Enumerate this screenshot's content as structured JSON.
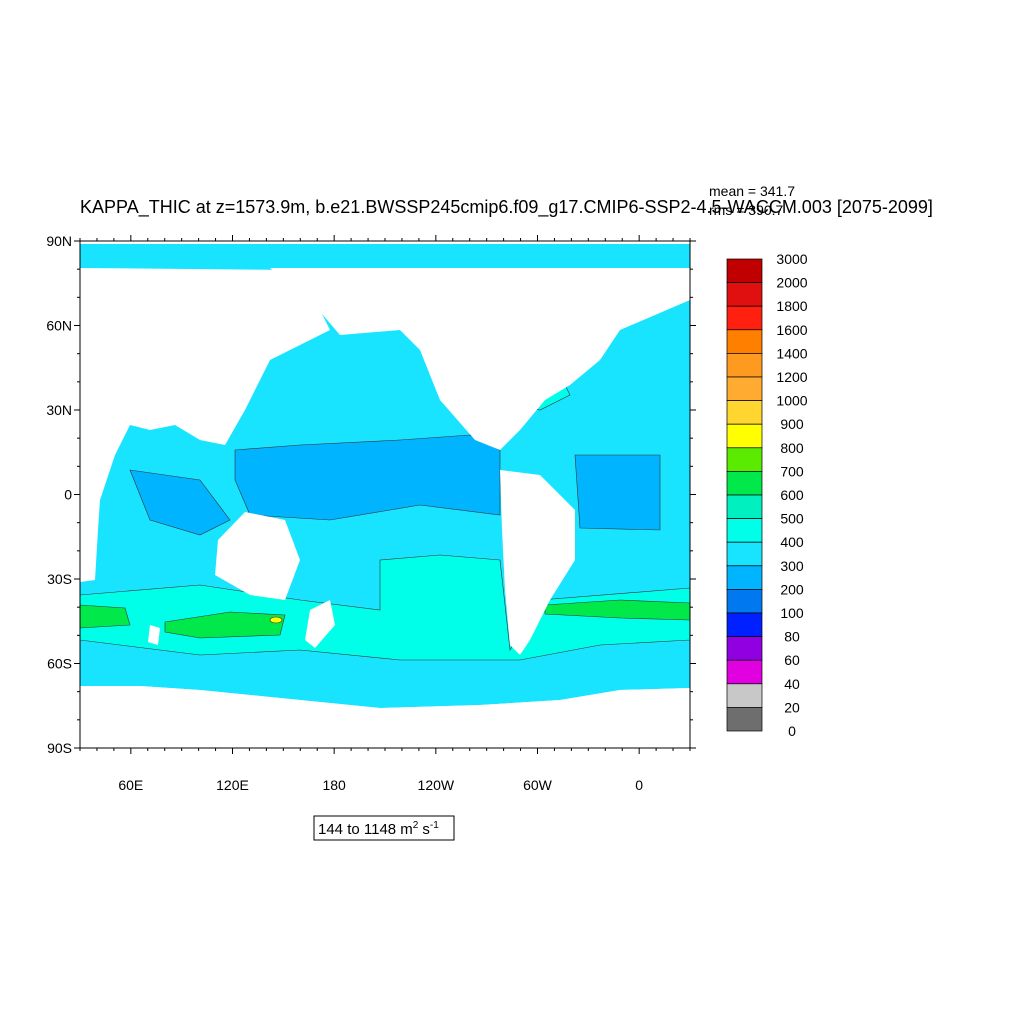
{
  "title": "KAPPA_THIC at z=1573.9m, b.e21.BWSSP245cmip6.f09_g17.CMIP6-SSP2-4.5-WACCM.003 [2075-2099]",
  "stats": {
    "mean": "mean = 341.7",
    "rms": "rms = 390.7"
  },
  "lat_labels": [
    "90N",
    "60N",
    "30N",
    "0",
    "30S",
    "60S",
    "90S"
  ],
  "lon_labels": [
    "60E",
    "120E",
    "180",
    "120W",
    "60W",
    "0"
  ],
  "colorbar": {
    "levels": [
      3000,
      2000,
      1800,
      1600,
      1400,
      1200,
      1000,
      900,
      800,
      700,
      600,
      500,
      400,
      300,
      200,
      100,
      80,
      60,
      40,
      20,
      0
    ],
    "colors": [
      "#c00000",
      "#e01010",
      "#ff2010",
      "#ff8000",
      "#ff9a20",
      "#ffaa30",
      "#ffd530",
      "#ffff00",
      "#5aeb00",
      "#00e84a",
      "#00f0c0",
      "#00ffe8",
      "#18e4ff",
      "#00b4ff",
      "#0078f0",
      "#0020ff",
      "#9000e0",
      "#e000e0",
      "#c8c8c8",
      "#6e6e6e"
    ]
  },
  "range": {
    "main": "144 to 1148 m",
    "sup1": "2",
    "unit2": "s",
    "sup2": "-1"
  }
}
